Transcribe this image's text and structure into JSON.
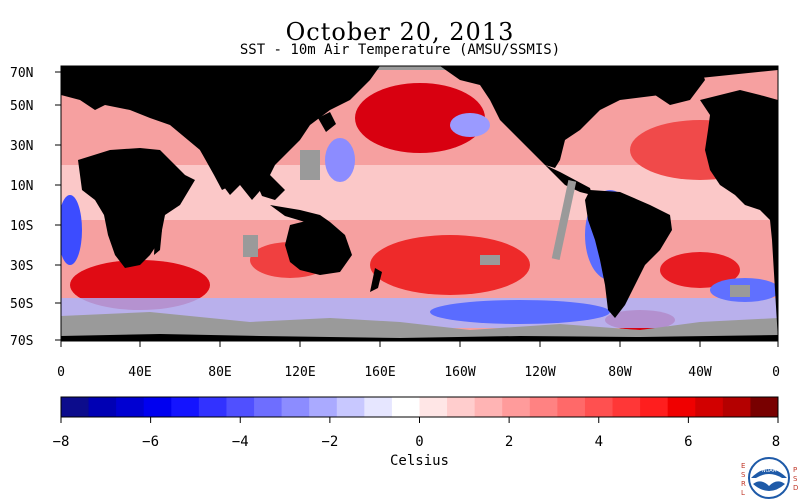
{
  "title": "October 20, 2013",
  "subtitle": "SST - 10m Air Temperature (AMSU/SSMIS)",
  "map": {
    "lat_labels": [
      "70N",
      "50N",
      "30N",
      "10N",
      "10S",
      "30S",
      "50S",
      "70S"
    ],
    "lon_labels": [
      "0",
      "40E",
      "80E",
      "120E",
      "160E",
      "160W",
      "120W",
      "80W",
      "40W",
      "0"
    ],
    "colors": {
      "land": "#000000",
      "ice_missing": "#9a9a9a",
      "warm": "#e8202a",
      "cool": "#5a6cff"
    }
  },
  "colorbar": {
    "label": "Celsius",
    "tick_labels": [
      "−8",
      "−6",
      "−4",
      "−2",
      "0",
      "2",
      "4",
      "6",
      "8"
    ],
    "range": [
      -8,
      8
    ],
    "step": 0.5,
    "colors": [
      "#0c0c8c",
      "#0000b4",
      "#0000d2",
      "#0000f0",
      "#1414ff",
      "#3232ff",
      "#5050ff",
      "#6e6eff",
      "#8c8cff",
      "#aaaaff",
      "#c8c8ff",
      "#e6e6ff",
      "#ffffff",
      "#ffe6e6",
      "#ffcdcd",
      "#ffb4b4",
      "#ff9b9b",
      "#ff8282",
      "#ff6969",
      "#ff5050",
      "#ff3737",
      "#ff1e1e",
      "#f00000",
      "#d20000",
      "#b40000",
      "#780000"
    ]
  },
  "logos": {
    "left_text": "ESRL",
    "right_text": "PSD",
    "seal_text": "NOAA"
  }
}
